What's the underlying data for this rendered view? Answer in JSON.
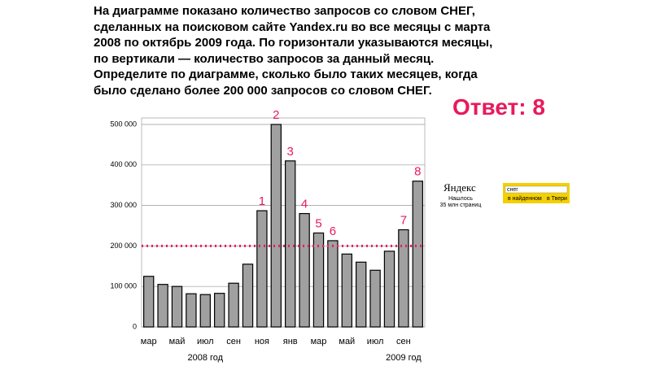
{
  "task": {
    "lines": [
      "На диаграмме показано количество запросов со словом СНЕГ,",
      "сделанных на поисковом сайте Yandex.ru во все месяцы с марта",
      "2008 по октябрь 2009 года. По горизонтали указываются месяцы,",
      "по вертикали — количество запросов за данный месяц.",
      "Определите по диаграмме, сколько было таких месяцев, когда",
      "было сделано более 200 000 запросов со словом СНЕГ."
    ],
    "answer": "Ответ: 8"
  },
  "chart_data": {
    "type": "bar",
    "categories": [
      "мар",
      null,
      "май",
      null,
      "июл",
      null,
      "сен",
      null,
      "ноя",
      null,
      "янв",
      null,
      "мар",
      null,
      "май",
      null,
      "июл",
      null,
      "сен",
      null
    ],
    "values": [
      125000,
      105000,
      100000,
      82000,
      80000,
      83000,
      108000,
      155000,
      287000,
      500000,
      410000,
      280000,
      232000,
      213000,
      180000,
      160000,
      140000,
      187000,
      240000,
      360000
    ],
    "color": "#a0a0a0",
    "marker_labels": [
      null,
      null,
      null,
      null,
      null,
      null,
      null,
      null,
      "1",
      "2",
      "3",
      "4",
      "5",
      "6",
      null,
      null,
      null,
      null,
      "7",
      "8"
    ],
    "marker_color": "#e8195c",
    "year_labels": [
      "2008 год",
      "2009 год"
    ],
    "threshold": 200000,
    "threshold_color": "#e8195c",
    "ylim": [
      0,
      500000
    ],
    "yticks": [
      0,
      {
        "value": 100000,
        "label": "100 000"
      },
      {
        "value": 200000,
        "label": "200 000"
      },
      {
        "value": 300000,
        "label": "300 000"
      },
      {
        "value": 400000,
        "label": "400 000"
      },
      {
        "value": 500000,
        "label": "500 000"
      }
    ],
    "grid": true
  },
  "yandex_widget": {
    "logo": "Яндекс",
    "found": "Нашлось",
    "count": "35 млн страниц",
    "query": "снег",
    "option1": "в найденном",
    "option2": "в Твери"
  }
}
